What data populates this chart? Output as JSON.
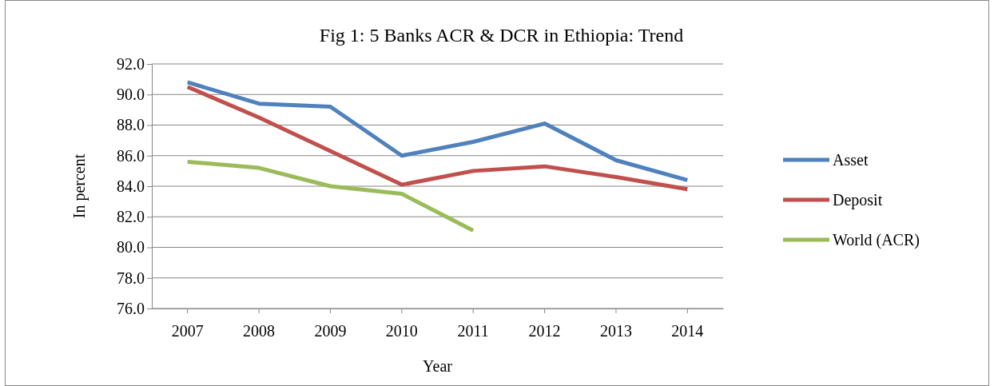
{
  "chart_data": {
    "type": "line",
    "title": "Fig 1: 5 Banks ACR & DCR in Ethiopia: Trend",
    "xlabel": "Year",
    "ylabel": "In percent",
    "categories": [
      "2007",
      "2008",
      "2009",
      "2010",
      "2011",
      "2012",
      "2013",
      "2014"
    ],
    "series": [
      {
        "name": "Asset",
        "color": "#4f81bd",
        "values": [
          90.8,
          89.4,
          89.2,
          86.0,
          86.9,
          88.1,
          85.7,
          84.4
        ]
      },
      {
        "name": "Deposit",
        "color": "#c0504d",
        "values": [
          90.5,
          88.5,
          86.3,
          84.1,
          85.0,
          85.3,
          84.6,
          83.8
        ]
      },
      {
        "name": "World (ACR)",
        "color": "#9bbb59",
        "values": [
          85.6,
          85.2,
          84.0,
          83.5,
          81.1,
          null,
          null,
          null
        ]
      }
    ],
    "ylim": [
      76,
      92
    ],
    "yticks": [
      {
        "value": 76,
        "label": "76.0"
      },
      {
        "value": 78,
        "label": "78.0"
      },
      {
        "value": 80,
        "label": "80.0"
      },
      {
        "value": 82,
        "label": "82.0"
      },
      {
        "value": 84,
        "label": "84.0"
      },
      {
        "value": 86,
        "label": "86.0"
      },
      {
        "value": 88,
        "label": "88.0"
      },
      {
        "value": 90,
        "label": "90.0"
      },
      {
        "value": 92,
        "label": "92.0"
      }
    ],
    "grid": "y",
    "legend": "right",
    "marker": "none",
    "line_style": "solid"
  }
}
